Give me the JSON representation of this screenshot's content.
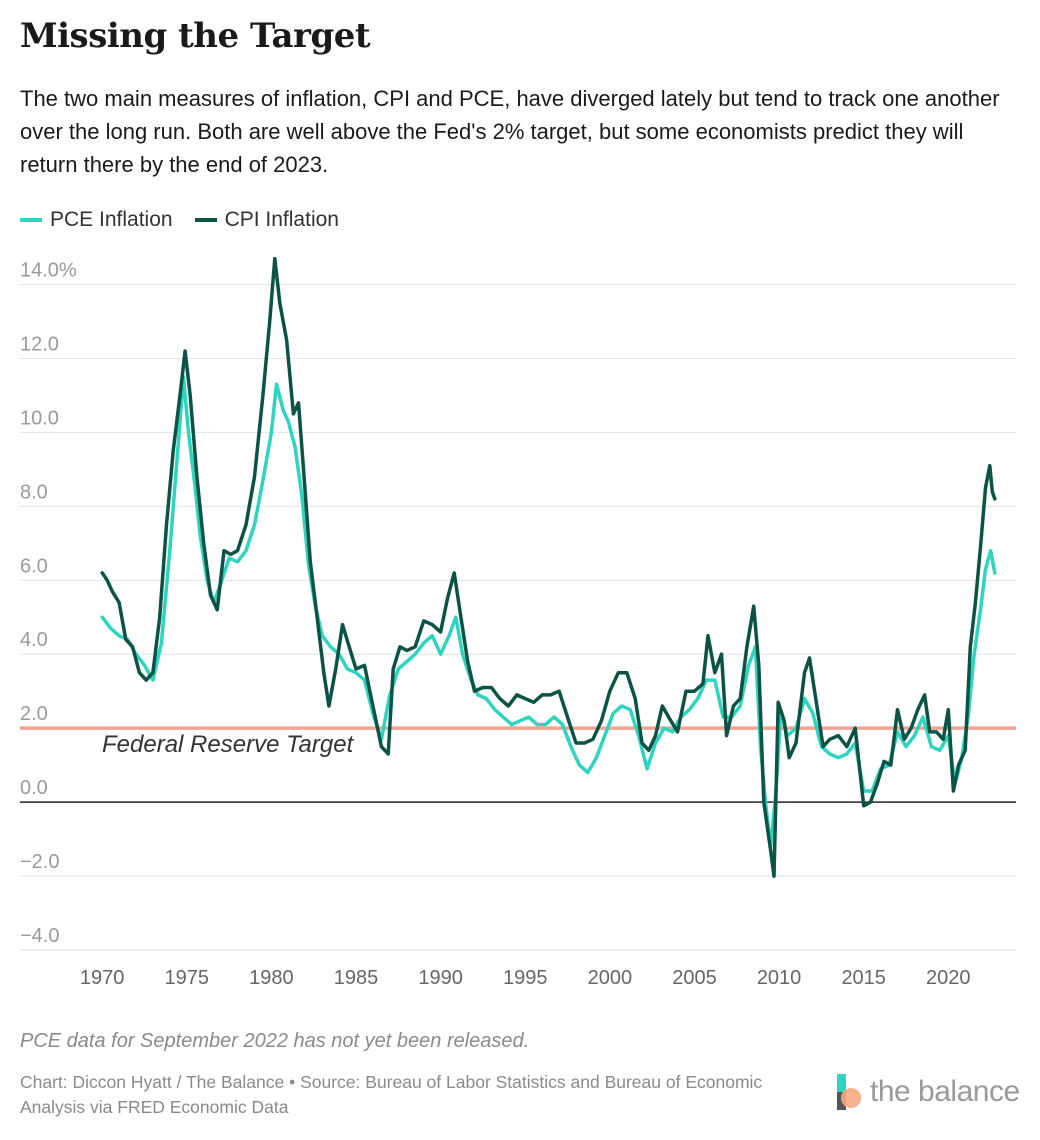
{
  "header": {
    "title": "Missing the Target",
    "subtitle": "The two main measures of inflation, CPI and PCE, have diverged lately but tend to track one another over the long run. Both are well above the Fed's 2% target, but some economists predict they will return there by the end of 2023."
  },
  "legend": {
    "pce_label": "PCE Inflation",
    "cpi_label": "CPI Inflation"
  },
  "colors": {
    "pce": "#2dd4bf",
    "cpi": "#0b5345",
    "target": "#f0a593",
    "grid": "#e2e2e2",
    "zero": "#222222",
    "tick": "#9a9a9a"
  },
  "chart_data": {
    "type": "line",
    "title": "Missing the Target",
    "xlabel": "",
    "ylabel": "",
    "xlim": [
      1969.4,
      2024.0
    ],
    "ylim": [
      -4,
      14.5
    ],
    "x_ticks": [
      1970,
      1975,
      1980,
      1985,
      1990,
      1995,
      2000,
      2005,
      2010,
      2015,
      2020
    ],
    "y_ticks": [
      {
        "value": 14,
        "label": "14.0%"
      },
      {
        "value": 12,
        "label": "12.0"
      },
      {
        "value": 10,
        "label": "10.0"
      },
      {
        "value": 8,
        "label": "8.0"
      },
      {
        "value": 6,
        "label": "6.0"
      },
      {
        "value": 4,
        "label": "4.0"
      },
      {
        "value": 2,
        "label": "2.0"
      },
      {
        "value": 0,
        "label": "0.0"
      },
      {
        "value": -2,
        "label": "−2.0"
      },
      {
        "value": -4,
        "label": "−4.0"
      }
    ],
    "reference_line": {
      "value": 2,
      "label": "Federal Reserve Target"
    },
    "series": [
      {
        "name": "PCE Inflation",
        "points": [
          [
            1970.0,
            5.0
          ],
          [
            1970.5,
            4.7
          ],
          [
            1971.0,
            4.5
          ],
          [
            1971.5,
            4.4
          ],
          [
            1972.0,
            4.0
          ],
          [
            1972.5,
            3.7
          ],
          [
            1973.0,
            3.3
          ],
          [
            1973.5,
            4.3
          ],
          [
            1974.0,
            6.8
          ],
          [
            1974.5,
            9.7
          ],
          [
            1974.8,
            11.5
          ],
          [
            1975.1,
            10.0
          ],
          [
            1975.5,
            8.5
          ],
          [
            1975.8,
            7.2
          ],
          [
            1976.2,
            6.0
          ],
          [
            1976.6,
            5.4
          ],
          [
            1977.0,
            5.9
          ],
          [
            1977.5,
            6.6
          ],
          [
            1978.0,
            6.5
          ],
          [
            1978.5,
            6.8
          ],
          [
            1979.0,
            7.5
          ],
          [
            1979.5,
            8.7
          ],
          [
            1980.0,
            10.0
          ],
          [
            1980.3,
            11.3
          ],
          [
            1980.7,
            10.6
          ],
          [
            1981.0,
            10.3
          ],
          [
            1981.4,
            9.6
          ],
          [
            1981.8,
            8.3
          ],
          [
            1982.2,
            6.4
          ],
          [
            1982.6,
            5.3
          ],
          [
            1983.0,
            4.5
          ],
          [
            1983.5,
            4.2
          ],
          [
            1984.0,
            4.0
          ],
          [
            1984.5,
            3.6
          ],
          [
            1985.0,
            3.5
          ],
          [
            1985.5,
            3.3
          ],
          [
            1986.0,
            2.4
          ],
          [
            1986.5,
            1.7
          ],
          [
            1987.0,
            2.9
          ],
          [
            1987.5,
            3.6
          ],
          [
            1988.0,
            3.8
          ],
          [
            1988.5,
            4.0
          ],
          [
            1989.0,
            4.3
          ],
          [
            1989.5,
            4.5
          ],
          [
            1990.0,
            4.0
          ],
          [
            1990.5,
            4.5
          ],
          [
            1990.9,
            5.0
          ],
          [
            1991.3,
            4.0
          ],
          [
            1991.8,
            3.3
          ],
          [
            1992.2,
            2.9
          ],
          [
            1992.7,
            2.8
          ],
          [
            1993.2,
            2.5
          ],
          [
            1993.7,
            2.3
          ],
          [
            1994.2,
            2.1
          ],
          [
            1994.7,
            2.2
          ],
          [
            1995.2,
            2.3
          ],
          [
            1995.7,
            2.1
          ],
          [
            1996.2,
            2.1
          ],
          [
            1996.7,
            2.3
          ],
          [
            1997.2,
            2.1
          ],
          [
            1997.7,
            1.5
          ],
          [
            1998.2,
            1.0
          ],
          [
            1998.7,
            0.8
          ],
          [
            1999.2,
            1.2
          ],
          [
            1999.7,
            1.8
          ],
          [
            2000.2,
            2.4
          ],
          [
            2000.7,
            2.6
          ],
          [
            2001.2,
            2.5
          ],
          [
            2001.7,
            1.8
          ],
          [
            2002.2,
            0.9
          ],
          [
            2002.7,
            1.6
          ],
          [
            2003.2,
            2.0
          ],
          [
            2003.7,
            1.9
          ],
          [
            2004.2,
            2.3
          ],
          [
            2004.7,
            2.5
          ],
          [
            2005.2,
            2.8
          ],
          [
            2005.7,
            3.3
          ],
          [
            2006.2,
            3.3
          ],
          [
            2006.7,
            2.3
          ],
          [
            2007.2,
            2.3
          ],
          [
            2007.7,
            2.6
          ],
          [
            2008.2,
            3.7
          ],
          [
            2008.6,
            4.2
          ],
          [
            2008.9,
            1.5
          ],
          [
            2009.2,
            0.0
          ],
          [
            2009.5,
            -1.2
          ],
          [
            2009.8,
            0.2
          ],
          [
            2010.1,
            2.4
          ],
          [
            2010.5,
            1.8
          ],
          [
            2011.0,
            2.0
          ],
          [
            2011.5,
            2.8
          ],
          [
            2012.0,
            2.4
          ],
          [
            2012.5,
            1.5
          ],
          [
            2013.0,
            1.3
          ],
          [
            2013.5,
            1.2
          ],
          [
            2014.0,
            1.3
          ],
          [
            2014.5,
            1.6
          ],
          [
            2015.0,
            0.3
          ],
          [
            2015.5,
            0.3
          ],
          [
            2016.0,
            0.9
          ],
          [
            2016.5,
            1.0
          ],
          [
            2017.0,
            1.9
          ],
          [
            2017.5,
            1.5
          ],
          [
            2018.0,
            1.8
          ],
          [
            2018.5,
            2.3
          ],
          [
            2019.0,
            1.5
          ],
          [
            2019.5,
            1.4
          ],
          [
            2020.0,
            1.8
          ],
          [
            2020.4,
            0.5
          ],
          [
            2020.8,
            1.2
          ],
          [
            2021.2,
            2.4
          ],
          [
            2021.5,
            3.9
          ],
          [
            2021.9,
            5.2
          ],
          [
            2022.2,
            6.3
          ],
          [
            2022.5,
            6.8
          ],
          [
            2022.75,
            6.2
          ]
        ]
      },
      {
        "name": "CPI Inflation",
        "points": [
          [
            1970.0,
            6.2
          ],
          [
            1970.3,
            6.0
          ],
          [
            1970.6,
            5.7
          ],
          [
            1971.0,
            5.4
          ],
          [
            1971.4,
            4.4
          ],
          [
            1971.8,
            4.2
          ],
          [
            1972.2,
            3.5
          ],
          [
            1972.6,
            3.3
          ],
          [
            1973.0,
            3.5
          ],
          [
            1973.4,
            5.0
          ],
          [
            1973.8,
            7.5
          ],
          [
            1974.2,
            9.5
          ],
          [
            1974.6,
            11.0
          ],
          [
            1974.9,
            12.2
          ],
          [
            1975.2,
            11.0
          ],
          [
            1975.6,
            8.8
          ],
          [
            1976.0,
            7.0
          ],
          [
            1976.4,
            5.6
          ],
          [
            1976.8,
            5.2
          ],
          [
            1977.2,
            6.8
          ],
          [
            1977.6,
            6.7
          ],
          [
            1978.0,
            6.8
          ],
          [
            1978.5,
            7.5
          ],
          [
            1979.0,
            8.8
          ],
          [
            1979.5,
            11.0
          ],
          [
            1979.9,
            13.0
          ],
          [
            1980.2,
            14.7
          ],
          [
            1980.5,
            13.5
          ],
          [
            1980.9,
            12.5
          ],
          [
            1981.3,
            10.5
          ],
          [
            1981.6,
            10.8
          ],
          [
            1981.9,
            9.0
          ],
          [
            1982.3,
            6.5
          ],
          [
            1982.7,
            5.0
          ],
          [
            1983.1,
            3.5
          ],
          [
            1983.4,
            2.6
          ],
          [
            1983.8,
            3.6
          ],
          [
            1984.2,
            4.8
          ],
          [
            1984.6,
            4.2
          ],
          [
            1985.0,
            3.6
          ],
          [
            1985.5,
            3.7
          ],
          [
            1986.0,
            2.6
          ],
          [
            1986.5,
            1.5
          ],
          [
            1986.9,
            1.3
          ],
          [
            1987.2,
            3.6
          ],
          [
            1987.6,
            4.2
          ],
          [
            1988.0,
            4.1
          ],
          [
            1988.5,
            4.2
          ],
          [
            1989.0,
            4.9
          ],
          [
            1989.5,
            4.8
          ],
          [
            1990.0,
            4.6
          ],
          [
            1990.4,
            5.5
          ],
          [
            1990.8,
            6.2
          ],
          [
            1991.2,
            5.0
          ],
          [
            1991.6,
            3.8
          ],
          [
            1992.0,
            3.0
          ],
          [
            1992.5,
            3.1
          ],
          [
            1993.0,
            3.1
          ],
          [
            1993.5,
            2.8
          ],
          [
            1994.0,
            2.6
          ],
          [
            1994.5,
            2.9
          ],
          [
            1995.0,
            2.8
          ],
          [
            1995.5,
            2.7
          ],
          [
            1996.0,
            2.9
          ],
          [
            1996.5,
            2.9
          ],
          [
            1997.0,
            3.0
          ],
          [
            1997.5,
            2.3
          ],
          [
            1998.0,
            1.6
          ],
          [
            1998.5,
            1.6
          ],
          [
            1999.0,
            1.7
          ],
          [
            1999.5,
            2.2
          ],
          [
            2000.0,
            3.0
          ],
          [
            2000.5,
            3.5
          ],
          [
            2001.0,
            3.5
          ],
          [
            2001.5,
            2.8
          ],
          [
            2001.9,
            1.6
          ],
          [
            2002.3,
            1.4
          ],
          [
            2002.7,
            1.8
          ],
          [
            2003.1,
            2.6
          ],
          [
            2003.6,
            2.2
          ],
          [
            2004.0,
            1.9
          ],
          [
            2004.5,
            3.0
          ],
          [
            2005.0,
            3.0
          ],
          [
            2005.5,
            3.2
          ],
          [
            2005.8,
            4.5
          ],
          [
            2006.2,
            3.5
          ],
          [
            2006.6,
            4.0
          ],
          [
            2006.9,
            1.8
          ],
          [
            2007.3,
            2.6
          ],
          [
            2007.7,
            2.8
          ],
          [
            2008.1,
            4.2
          ],
          [
            2008.5,
            5.3
          ],
          [
            2008.8,
            3.7
          ],
          [
            2009.1,
            0.0
          ],
          [
            2009.5,
            -1.3
          ],
          [
            2009.7,
            -2.0
          ],
          [
            2009.95,
            2.7
          ],
          [
            2010.3,
            2.2
          ],
          [
            2010.6,
            1.2
          ],
          [
            2011.0,
            1.6
          ],
          [
            2011.5,
            3.5
          ],
          [
            2011.8,
            3.9
          ],
          [
            2012.2,
            2.7
          ],
          [
            2012.6,
            1.5
          ],
          [
            2013.0,
            1.7
          ],
          [
            2013.5,
            1.8
          ],
          [
            2014.0,
            1.5
          ],
          [
            2014.5,
            2.0
          ],
          [
            2015.0,
            -0.1
          ],
          [
            2015.4,
            0.0
          ],
          [
            2015.8,
            0.5
          ],
          [
            2016.2,
            1.1
          ],
          [
            2016.6,
            1.0
          ],
          [
            2017.0,
            2.5
          ],
          [
            2017.4,
            1.7
          ],
          [
            2017.8,
            2.0
          ],
          [
            2018.2,
            2.5
          ],
          [
            2018.6,
            2.9
          ],
          [
            2018.9,
            1.9
          ],
          [
            2019.3,
            1.9
          ],
          [
            2019.7,
            1.7
          ],
          [
            2020.0,
            2.5
          ],
          [
            2020.3,
            0.3
          ],
          [
            2020.6,
            1.0
          ],
          [
            2021.0,
            1.4
          ],
          [
            2021.3,
            4.2
          ],
          [
            2021.6,
            5.4
          ],
          [
            2021.9,
            6.9
          ],
          [
            2022.2,
            8.5
          ],
          [
            2022.45,
            9.1
          ],
          [
            2022.6,
            8.4
          ],
          [
            2022.75,
            8.2
          ]
        ]
      }
    ]
  },
  "footer": {
    "note": "PCE data for September 2022 has not yet been released.",
    "source": "Chart: Diccon Hyatt / The Balance • Source: Bureau of Labor Statistics and Bureau of Economic Analysis via FRED Economic Data",
    "brand": "the balance"
  }
}
